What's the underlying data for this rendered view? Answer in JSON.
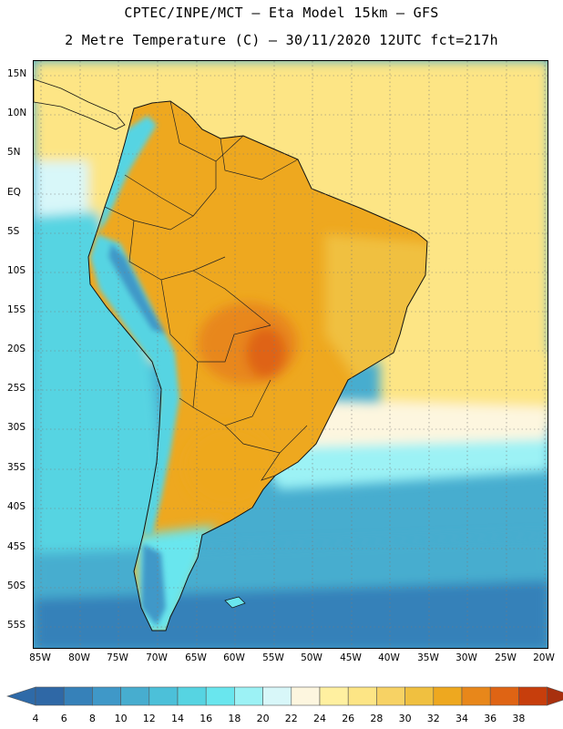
{
  "title_line1": "CPTEC/INPE/MCT –  Eta Model 15km – GFS",
  "title_line2": "2 Metre Temperature (C) – 30/11/2020 12UTC fct=217h",
  "lat_labels": [
    "15N",
    "10N",
    "5N",
    "EQ",
    "5S",
    "10S",
    "15S",
    "20S",
    "25S",
    "30S",
    "35S",
    "40S",
    "45S",
    "50S",
    "55S"
  ],
  "lon_labels": [
    "85W",
    "80W",
    "75W",
    "70W",
    "65W",
    "60W",
    "55W",
    "50W",
    "45W",
    "40W",
    "35W",
    "30W",
    "25W",
    "20W"
  ],
  "colorbar": {
    "labels": [
      "4",
      "6",
      "8",
      "10",
      "12",
      "14",
      "16",
      "18",
      "20",
      "22",
      "24",
      "26",
      "28",
      "30",
      "32",
      "34",
      "36",
      "38"
    ],
    "low_arrow_color": "#2e6aa8",
    "high_arrow_color": "#a8300e",
    "colors": [
      "#2f68a6",
      "#3681b9",
      "#3f98c8",
      "#47adcf",
      "#4cc0d9",
      "#56d4e2",
      "#69e6ee",
      "#9cf2f5",
      "#d8f7f9",
      "#fdf6df",
      "#fff0a0",
      "#fde585",
      "#f7d264",
      "#f0c040",
      "#eea81f",
      "#e8871a",
      "#df6414",
      "#c73e0c"
    ]
  },
  "map": {
    "ocean_colors": {
      "atlantic_north": "#fde585",
      "atlantic_mid": "#fdf6df",
      "atlantic_south_light": "#9cf2f5",
      "atlantic_south": "#47adcf",
      "atlantic_far_south": "#3681b9",
      "pacific_north": "#d8f7f9",
      "pacific": "#56d4e2",
      "pacific_south": "#47adcf",
      "caribbean": "#fde585"
    },
    "land_colors": {
      "amazon": "#eea81f",
      "interior_hot": "#e8871a",
      "hottest": "#df6414",
      "northeast": "#f0c040",
      "andes": "#56d4e2",
      "high_andes": "#3f98c8",
      "patagonia": "#69e6ee",
      "argentina": "#eea81f"
    }
  }
}
